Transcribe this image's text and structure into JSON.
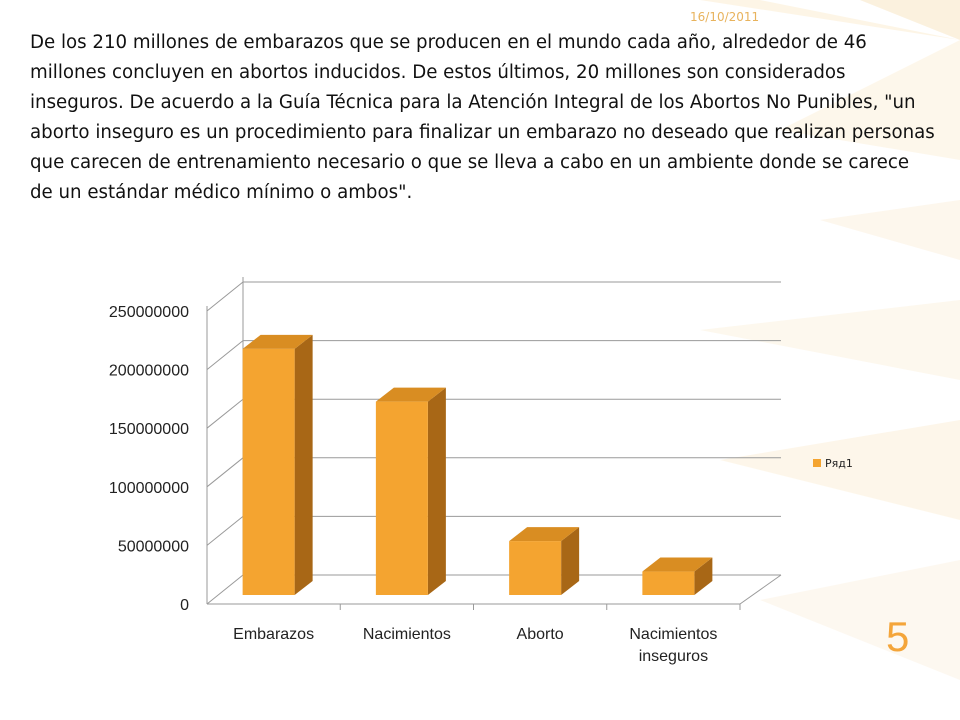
{
  "header": {
    "date": "16/10/2011"
  },
  "body_text": "De los 210 millones de embarazos que se producen en el mundo cada año, alrededor de 46 millones concluyen en abortos inducidos. De estos últimos, 20 millones son considerados inseguros. De acuerdo a la Guía Técnica para la Atención Integral de los Abortos No Punibles, \"un aborto inseguro es un procedimiento para finalizar un embarazo no deseado que realizan personas que carecen de entrenamiento necesario o que se lleva a cabo en un ambiente donde se carece de un estándar médico mínimo o ambos\".",
  "slide_number": "5",
  "colors": {
    "bar_front": "#f4a430",
    "bar_side": "#a86716",
    "bar_top": "#d98d22",
    "grid": "#9a9a9a",
    "accent": "#f4a53a"
  },
  "chart_data": {
    "type": "bar",
    "style": "3d-column",
    "categories": [
      [
        "Embarazos"
      ],
      [
        "Nacimientos"
      ],
      [
        "Aborto"
      ],
      [
        "Nacimientos",
        "inseguros"
      ]
    ],
    "series": [
      {
        "name": "Ряд1",
        "values": [
          210000000,
          165000000,
          46000000,
          20000000
        ]
      }
    ],
    "ylim": [
      0,
      250000000
    ],
    "yticks": [
      "0",
      "50000000",
      "100000000",
      "150000000",
      "200000000",
      "250000000"
    ],
    "grid": true,
    "legend": "right"
  }
}
